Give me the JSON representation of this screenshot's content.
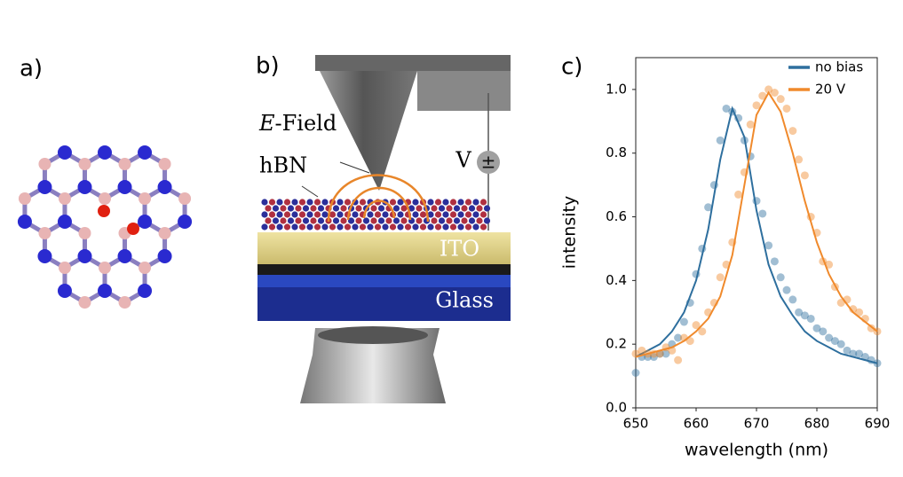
{
  "panels": {
    "a": {
      "label": "a)"
    },
    "b": {
      "label": "b)",
      "field_symbol": "E",
      "field_text": "-Field",
      "hbn": "hBN",
      "voltage": "V",
      "bias_symbol": "±",
      "ito": "ITO",
      "glass": "Glass"
    },
    "c": {
      "label": "c)"
    }
  },
  "chart_data": {
    "type": "scatter",
    "xlabel": "wavelength (nm)",
    "ylabel": "intensity",
    "xlim": [
      650,
      690
    ],
    "xticks": [
      650,
      660,
      670,
      680,
      690
    ],
    "ylim": [
      0,
      1.1
    ],
    "yticks": [
      {
        "value": 0,
        "label": "0.0"
      },
      0.2,
      0.4,
      0.6,
      0.8,
      {
        "value": 1,
        "label": "1.0"
      }
    ],
    "legend": "upper right",
    "series": [
      {
        "name": "no bias",
        "color": "#2e6f9e",
        "x": [
          650,
          652,
          654,
          656,
          658,
          660,
          662,
          664,
          666,
          668,
          670,
          672,
          674,
          676,
          678,
          680,
          682,
          684,
          686,
          688,
          690
        ],
        "values": [
          0.16,
          0.18,
          0.2,
          0.24,
          0.3,
          0.4,
          0.56,
          0.78,
          0.94,
          0.85,
          0.62,
          0.45,
          0.35,
          0.29,
          0.24,
          0.21,
          0.19,
          0.17,
          0.16,
          0.15,
          0.14
        ],
        "points_x": [
          650,
          651,
          652,
          653,
          654,
          655,
          656,
          657,
          658,
          659,
          660,
          661,
          662,
          663,
          664,
          665,
          666,
          667,
          668,
          669,
          670,
          671,
          672,
          673,
          674,
          675,
          676,
          677,
          678,
          679,
          680,
          681,
          682,
          683,
          684,
          685,
          686,
          687,
          688,
          689,
          690
        ],
        "points_y": [
          0.11,
          0.16,
          0.16,
          0.16,
          0.17,
          0.17,
          0.2,
          0.22,
          0.27,
          0.33,
          0.42,
          0.5,
          0.63,
          0.7,
          0.84,
          0.94,
          0.93,
          0.91,
          0.84,
          0.79,
          0.65,
          0.61,
          0.51,
          0.46,
          0.41,
          0.37,
          0.34,
          0.3,
          0.29,
          0.28,
          0.25,
          0.24,
          0.22,
          0.21,
          0.2,
          0.18,
          0.17,
          0.17,
          0.16,
          0.15,
          0.14
        ]
      },
      {
        "name": "20 V",
        "color": "#f08a2c",
        "x": [
          650,
          652,
          654,
          656,
          658,
          660,
          662,
          664,
          666,
          668,
          670,
          672,
          674,
          676,
          678,
          680,
          682,
          684,
          686,
          688,
          690
        ],
        "values": [
          0.16,
          0.17,
          0.18,
          0.19,
          0.21,
          0.24,
          0.28,
          0.35,
          0.48,
          0.7,
          0.92,
          0.99,
          0.93,
          0.8,
          0.65,
          0.52,
          0.42,
          0.35,
          0.3,
          0.27,
          0.24
        ],
        "points_x": [
          650,
          651,
          652,
          653,
          654,
          655,
          656,
          657,
          658,
          659,
          660,
          661,
          662,
          663,
          664,
          665,
          666,
          667,
          668,
          669,
          670,
          671,
          672,
          673,
          674,
          675,
          676,
          677,
          678,
          679,
          680,
          681,
          682,
          683,
          684,
          685,
          686,
          687,
          688,
          689,
          690
        ],
        "points_y": [
          0.17,
          0.18,
          0.17,
          0.17,
          0.17,
          0.19,
          0.18,
          0.15,
          0.22,
          0.21,
          0.26,
          0.24,
          0.3,
          0.33,
          0.41,
          0.45,
          0.52,
          0.67,
          0.74,
          0.89,
          0.95,
          0.98,
          1,
          0.99,
          0.97,
          0.94,
          0.87,
          0.78,
          0.73,
          0.6,
          0.55,
          0.46,
          0.45,
          0.38,
          0.33,
          0.34,
          0.31,
          0.3,
          0.28,
          0.25,
          0.24
        ]
      }
    ]
  }
}
